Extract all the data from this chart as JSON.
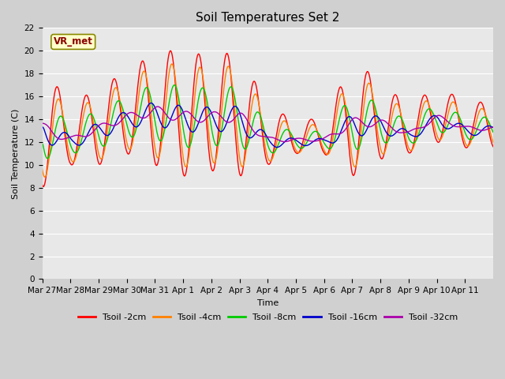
{
  "title": "Soil Temperatures Set 2",
  "xlabel": "Time",
  "ylabel": "Soil Temperature (C)",
  "ylim": [
    0,
    22
  ],
  "yticks": [
    0,
    2,
    4,
    6,
    8,
    10,
    12,
    14,
    16,
    18,
    20,
    22
  ],
  "annotation_text": "VR_met",
  "annotation_bg": "#FFFFCC",
  "annotation_border": "#888800",
  "annotation_text_color": "#8B0000",
  "x_labels": [
    "Mar 27",
    "Mar 28",
    "Mar 29",
    "Mar 30",
    "Mar 31",
    "Apr 1",
    "Apr 2",
    "Apr 3",
    "Apr 4",
    "Apr 5",
    "Apr 6",
    "Apr 7",
    "Apr 8",
    "Apr 9",
    "Apr 10",
    "Apr 11"
  ],
  "colors": {
    "Tsoil -2cm": "#FF0000",
    "Tsoil -4cm": "#FF8000",
    "Tsoil -8cm": "#00CC00",
    "Tsoil -16cm": "#0000CC",
    "Tsoil -32cm": "#AA00AA"
  },
  "plot_bg": "#E8E8E8",
  "grid_color": "#FFFFFF",
  "fig_bg": "#D0D0D0",
  "title_fontsize": 11,
  "tick_fontsize": 7.5,
  "label_fontsize": 8,
  "legend_fontsize": 8
}
